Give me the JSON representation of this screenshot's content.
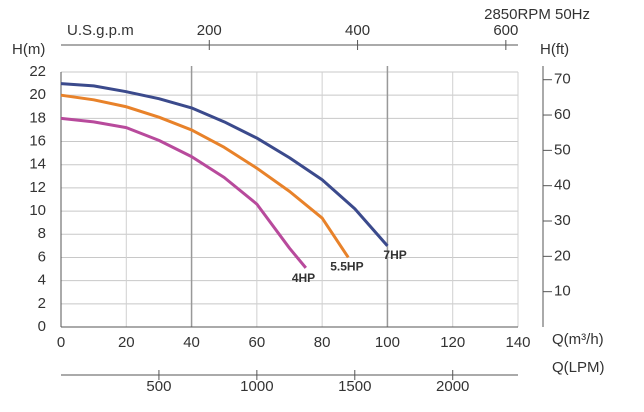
{
  "chart_data": {
    "type": "line",
    "annotation": "2850RPM  50Hz",
    "xlabel": "Q(m³/h)",
    "xlim": [
      0,
      140
    ],
    "xticks": [
      0,
      20,
      40,
      60,
      80,
      100,
      120,
      140
    ],
    "highlight_x": [
      40,
      100
    ],
    "ylabel": "H(m)",
    "ylim": [
      0,
      22
    ],
    "yticks": [
      0,
      2,
      4,
      6,
      8,
      10,
      12,
      14,
      16,
      18,
      20,
      22
    ],
    "y2label": "H(ft)",
    "y2lim": [
      0,
      72.18
    ],
    "y2ticks": [
      10,
      20,
      30,
      40,
      50,
      60,
      70
    ],
    "x2label": "U.S.g.p.m",
    "x2lim": [
      0,
      616.4
    ],
    "x2ticks": [
      200,
      400,
      600
    ],
    "x3label": "Q(LPM)",
    "x3lim": [
      0,
      2333.3
    ],
    "x3ticks": [
      500,
      1000,
      1500,
      2000
    ],
    "grid": true,
    "series": [
      {
        "name": "7HP",
        "color": "#3b4a8c",
        "x": [
          0,
          10,
          20,
          30,
          40,
          50,
          60,
          70,
          80,
          90,
          100
        ],
        "values": [
          21,
          20.8,
          20.3,
          19.7,
          18.9,
          17.7,
          16.3,
          14.6,
          12.7,
          10.2,
          7
        ]
      },
      {
        "name": "5.5HP",
        "color": "#e8822a",
        "x": [
          0,
          10,
          20,
          30,
          40,
          50,
          60,
          70,
          80,
          88
        ],
        "values": [
          20,
          19.6,
          19.0,
          18.1,
          17.0,
          15.5,
          13.7,
          11.7,
          9.4,
          6
        ]
      },
      {
        "name": "4HP",
        "color": "#b84a9c",
        "x": [
          0,
          10,
          20,
          30,
          40,
          50,
          60,
          70,
          75
        ],
        "values": [
          18,
          17.7,
          17.2,
          16.1,
          14.7,
          12.9,
          10.6,
          6.8,
          5.1
        ]
      }
    ]
  }
}
